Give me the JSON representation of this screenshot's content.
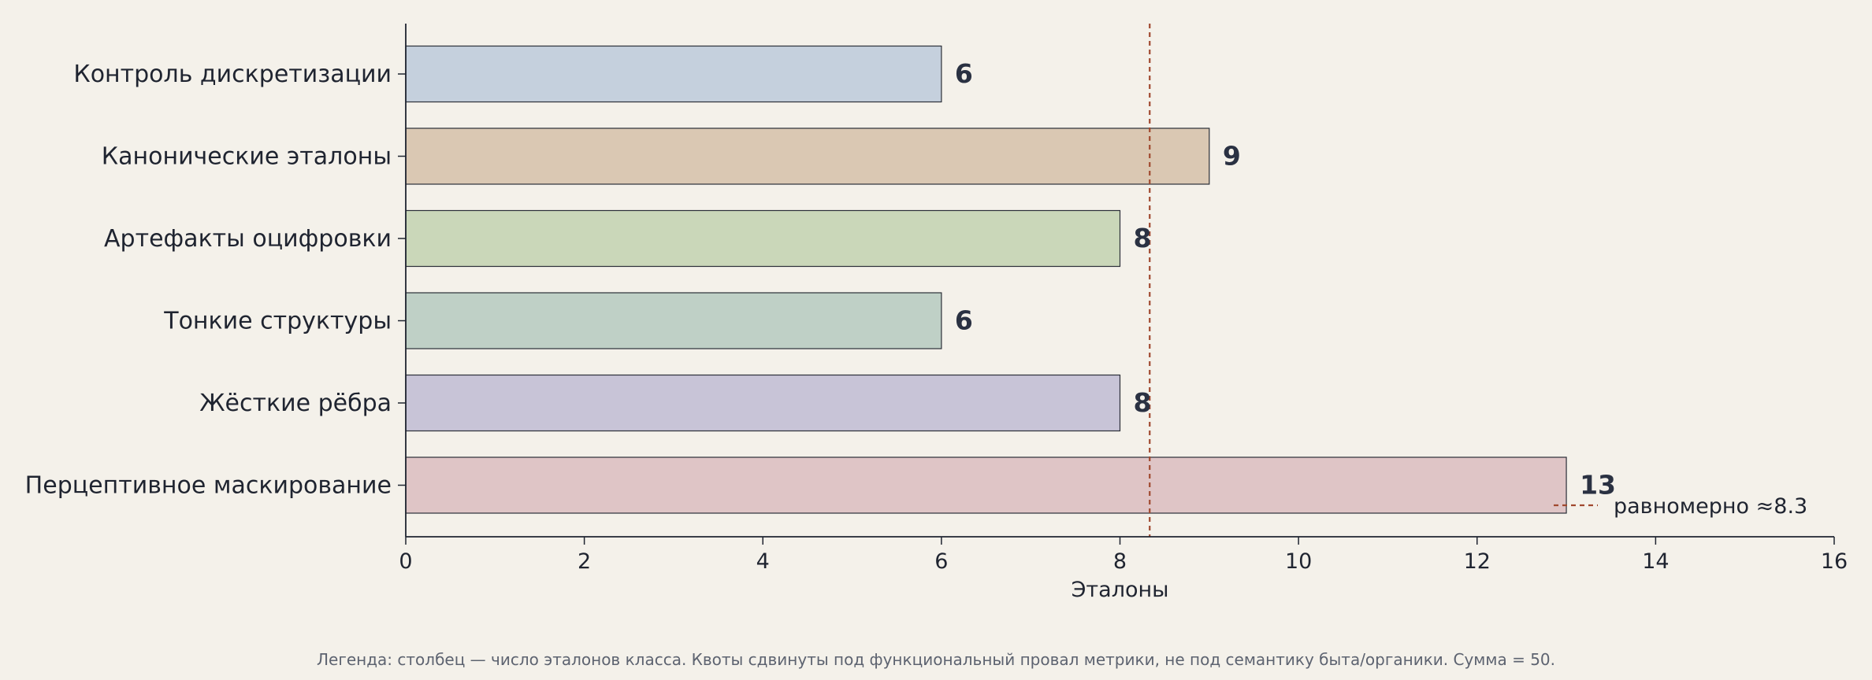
{
  "chart_data": {
    "type": "bar",
    "orientation": "horizontal",
    "categories": [
      "Контроль дискретизации",
      "Канонические эталоны",
      "Артефакты оцифровки",
      "Тонкие структуры",
      "Жёсткие рёбра",
      "Перцептивное маскирование"
    ],
    "values": [
      6,
      9,
      8,
      6,
      8,
      13
    ],
    "colors": [
      "#c5d0dd",
      "#dac8b3",
      "#cad7b9",
      "#bfd0c6",
      "#c8c4d7",
      "#dfc5c6"
    ],
    "title": "",
    "xlabel": "Эталоны",
    "ylabel": "",
    "xlim": [
      0,
      16
    ],
    "xticks": [
      0,
      2,
      4,
      6,
      8,
      10,
      12,
      14,
      16
    ],
    "grid": false,
    "reference_line": {
      "value": 8.333,
      "label": "равномерно ≈8.3",
      "color": "#a0492f",
      "style": "dashed"
    },
    "legend_placement": "bottom-right"
  },
  "footnote": "Легенда: столбец — число эталонов класса. Квоты сдвинуты под функциональный провал метрики, не под семантику быта/органики. Сумма = 50."
}
